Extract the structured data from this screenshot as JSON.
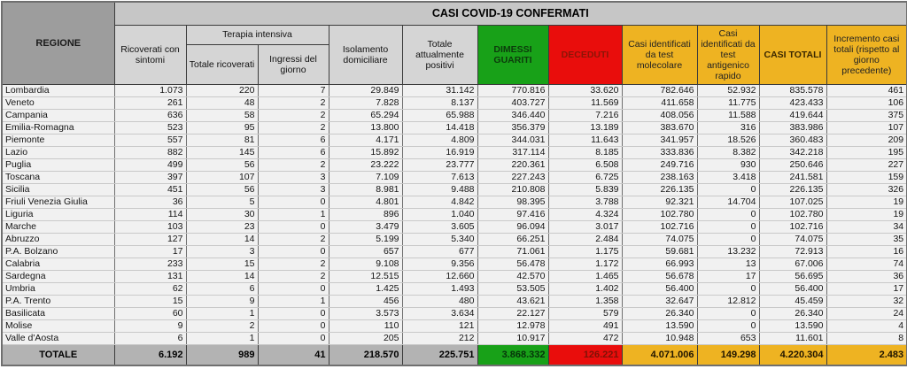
{
  "table": {
    "title": "CASI COVID-19 CONFERMATI",
    "region_header": "REGIONE",
    "group_headers": {
      "terapia": "Terapia intensiva"
    },
    "columns": [
      "Ricoverati con sintomi",
      "Totale ricoverati",
      "Ingressi del giorno",
      "Isolamento domiciliare",
      "Totale attualmente positivi",
      "DIMESSI GUARITI",
      "DECEDUTI",
      "Casi identificati da test molecolare",
      "Casi identificati da test antigenico rapido",
      "CASI TOTALI",
      "Incremento casi totali (rispetto al giorno precedente)"
    ],
    "rows": [
      {
        "region": "Lombardia",
        "values": [
          "1.073",
          "220",
          "7",
          "29.849",
          "31.142",
          "770.816",
          "33.620",
          "782.646",
          "52.932",
          "835.578",
          "461"
        ]
      },
      {
        "region": "Veneto",
        "values": [
          "261",
          "48",
          "2",
          "7.828",
          "8.137",
          "403.727",
          "11.569",
          "411.658",
          "11.775",
          "423.433",
          "106"
        ]
      },
      {
        "region": "Campania",
        "values": [
          "636",
          "58",
          "2",
          "65.294",
          "65.988",
          "346.440",
          "7.216",
          "408.056",
          "11.588",
          "419.644",
          "375"
        ]
      },
      {
        "region": "Emilia-Romagna",
        "values": [
          "523",
          "95",
          "2",
          "13.800",
          "14.418",
          "356.379",
          "13.189",
          "383.670",
          "316",
          "383.986",
          "107"
        ]
      },
      {
        "region": "Piemonte",
        "values": [
          "557",
          "81",
          "6",
          "4.171",
          "4.809",
          "344.031",
          "11.643",
          "341.957",
          "18.526",
          "360.483",
          "209"
        ]
      },
      {
        "region": "Lazio",
        "values": [
          "882",
          "145",
          "6",
          "15.892",
          "16.919",
          "317.114",
          "8.185",
          "333.836",
          "8.382",
          "342.218",
          "195"
        ]
      },
      {
        "region": "Puglia",
        "values": [
          "499",
          "56",
          "2",
          "23.222",
          "23.777",
          "220.361",
          "6.508",
          "249.716",
          "930",
          "250.646",
          "227"
        ]
      },
      {
        "region": "Toscana",
        "values": [
          "397",
          "107",
          "3",
          "7.109",
          "7.613",
          "227.243",
          "6.725",
          "238.163",
          "3.418",
          "241.581",
          "159"
        ]
      },
      {
        "region": "Sicilia",
        "values": [
          "451",
          "56",
          "3",
          "8.981",
          "9.488",
          "210.808",
          "5.839",
          "226.135",
          "0",
          "226.135",
          "326"
        ]
      },
      {
        "region": "Friuli Venezia Giulia",
        "values": [
          "36",
          "5",
          "0",
          "4.801",
          "4.842",
          "98.395",
          "3.788",
          "92.321",
          "14.704",
          "107.025",
          "19"
        ]
      },
      {
        "region": "Liguria",
        "values": [
          "114",
          "30",
          "1",
          "896",
          "1.040",
          "97.416",
          "4.324",
          "102.780",
          "0",
          "102.780",
          "19"
        ]
      },
      {
        "region": "Marche",
        "values": [
          "103",
          "23",
          "0",
          "3.479",
          "3.605",
          "96.094",
          "3.017",
          "102.716",
          "0",
          "102.716",
          "34"
        ]
      },
      {
        "region": "Abruzzo",
        "values": [
          "127",
          "14",
          "2",
          "5.199",
          "5.340",
          "66.251",
          "2.484",
          "74.075",
          "0",
          "74.075",
          "35"
        ]
      },
      {
        "region": "P.A. Bolzano",
        "values": [
          "17",
          "3",
          "0",
          "657",
          "677",
          "71.061",
          "1.175",
          "59.681",
          "13.232",
          "72.913",
          "16"
        ]
      },
      {
        "region": "Calabria",
        "values": [
          "233",
          "15",
          "2",
          "9.108",
          "9.356",
          "56.478",
          "1.172",
          "66.993",
          "13",
          "67.006",
          "74"
        ]
      },
      {
        "region": "Sardegna",
        "values": [
          "131",
          "14",
          "2",
          "12.515",
          "12.660",
          "42.570",
          "1.465",
          "56.678",
          "17",
          "56.695",
          "36"
        ]
      },
      {
        "region": "Umbria",
        "values": [
          "62",
          "6",
          "0",
          "1.425",
          "1.493",
          "53.505",
          "1.402",
          "56.400",
          "0",
          "56.400",
          "17"
        ]
      },
      {
        "region": "P.A. Trento",
        "values": [
          "15",
          "9",
          "1",
          "456",
          "480",
          "43.621",
          "1.358",
          "32.647",
          "12.812",
          "45.459",
          "32"
        ]
      },
      {
        "region": "Basilicata",
        "values": [
          "60",
          "1",
          "0",
          "3.573",
          "3.634",
          "22.127",
          "579",
          "26.340",
          "0",
          "26.340",
          "24"
        ]
      },
      {
        "region": "Molise",
        "values": [
          "9",
          "2",
          "0",
          "110",
          "121",
          "12.978",
          "491",
          "13.590",
          "0",
          "13.590",
          "4"
        ]
      },
      {
        "region": "Valle d'Aosta",
        "values": [
          "6",
          "1",
          "0",
          "205",
          "212",
          "10.917",
          "472",
          "10.948",
          "653",
          "11.601",
          "8"
        ]
      }
    ],
    "totale": {
      "label": "TOTALE",
      "values": [
        "6.192",
        "989",
        "41",
        "218.570",
        "225.751",
        "3.868.332",
        "126.221",
        "4.071.006",
        "149.298",
        "4.220.304",
        "2.483"
      ]
    }
  },
  "colors": {
    "green": "#18a118",
    "red": "#e90d0c",
    "yellow": "#eeb322",
    "title_band_gray": "#c6c6c6",
    "region_header_gray": "#9d9d9d",
    "subheader_gray": "#d5d5d5",
    "totale_row_gray": "#b3b3b3",
    "row_background": "#f1f1f1",
    "deceduti_text": "#8c1507"
  }
}
